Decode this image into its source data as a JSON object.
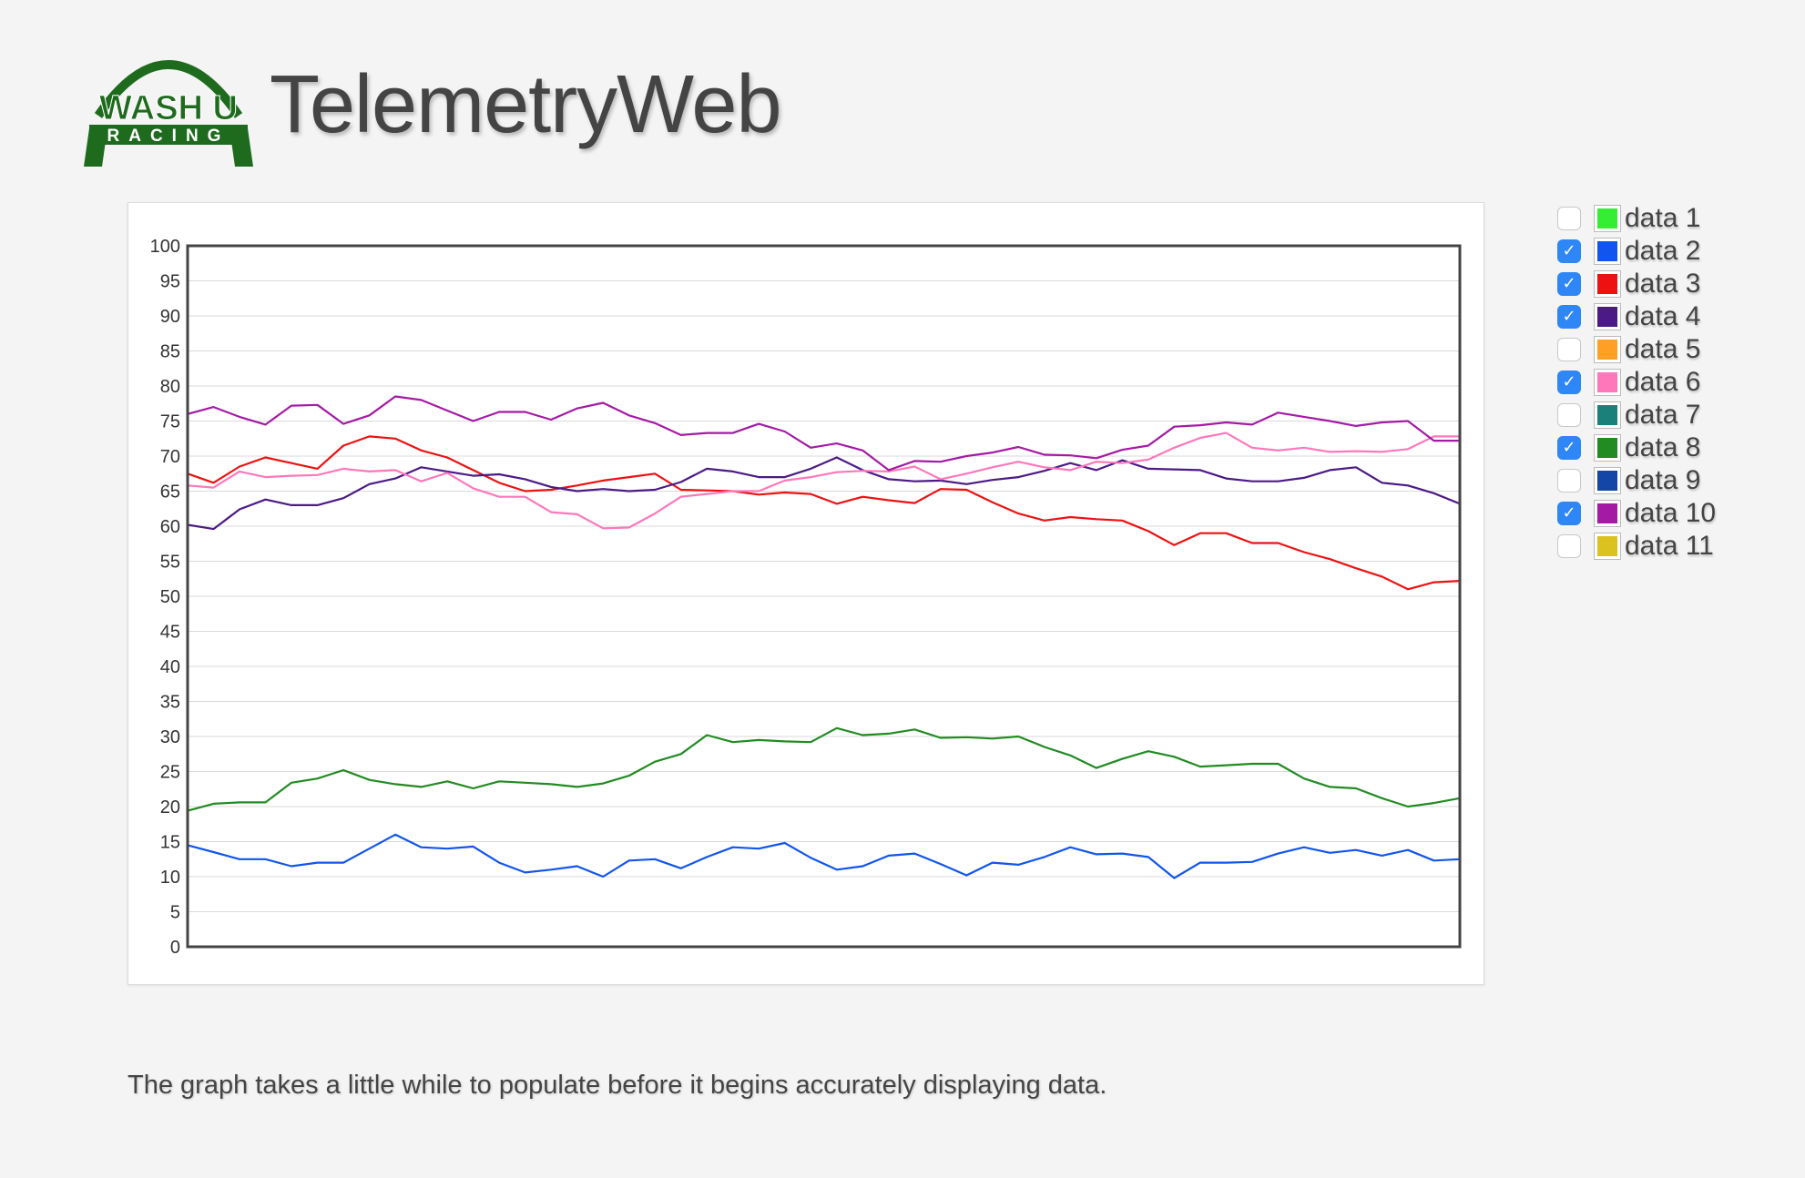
{
  "header": {
    "logo_top": "WASH U",
    "logo_bottom": "RACING",
    "title": "TelemetryWeb"
  },
  "legend": [
    {
      "label": "data 1",
      "color": "#33ee33",
      "checked": false
    },
    {
      "label": "data 2",
      "color": "#1155ee",
      "checked": true
    },
    {
      "label": "data 3",
      "color": "#ee1111",
      "checked": true
    },
    {
      "label": "data 4",
      "color": "#4b1a86",
      "checked": true
    },
    {
      "label": "data 5",
      "color": "#ffa024",
      "checked": false
    },
    {
      "label": "data 6",
      "color": "#ff77bb",
      "checked": true
    },
    {
      "label": "data 7",
      "color": "#1a8079",
      "checked": false
    },
    {
      "label": "data 8",
      "color": "#228b22",
      "checked": true
    },
    {
      "label": "data 9",
      "color": "#1446a8",
      "checked": false
    },
    {
      "label": "data 10",
      "color": "#a51aa5",
      "checked": true
    },
    {
      "label": "data 11",
      "color": "#dcc21f",
      "checked": false
    }
  ],
  "footnote": "The graph takes a little while to populate before it begins accurately displaying data.",
  "chart_data": {
    "type": "line",
    "title": "",
    "xlabel": "",
    "ylabel": "",
    "ylim": [
      0,
      100
    ],
    "y_ticks": [
      "0",
      "5",
      "10",
      "15",
      "20",
      "25",
      "30",
      "35",
      "40",
      "45",
      "50",
      "55",
      "60",
      "65",
      "70",
      "75",
      "80",
      "85",
      "90",
      "95",
      "100"
    ],
    "grid": true,
    "x_labels_shown": false,
    "x_count": 50,
    "series": [
      {
        "name": "data 2",
        "color": "#1155ee",
        "values": [
          14.5,
          13.5,
          12.5,
          12.5,
          11.5,
          12,
          12,
          14,
          16,
          14.2,
          14,
          14.3,
          12,
          10.6,
          11,
          11.5,
          10,
          12.3,
          12.5,
          11.2,
          12.8,
          14.2,
          14,
          14.8,
          12.7,
          11,
          11.5,
          13,
          13.3,
          11.8,
          10.2,
          12,
          11.7,
          12.8,
          14.2,
          13.2,
          13.3,
          12.8,
          9.8,
          12,
          12,
          12.1,
          13.3,
          14.2,
          13.4,
          13.8,
          13,
          13.8,
          12.3,
          12.5
        ]
      },
      {
        "name": "data 3",
        "color": "#ee1111",
        "values": [
          67.5,
          66.2,
          68.5,
          69.8,
          69,
          68.2,
          71.5,
          72.8,
          72.5,
          70.8,
          69.8,
          68,
          66.2,
          65,
          65.2,
          65.8,
          66.5,
          67,
          67.5,
          65.2,
          65.1,
          65,
          64.5,
          64.8,
          64.6,
          63.2,
          64.2,
          63.7,
          63.3,
          65.3,
          65.2,
          63.4,
          61.8,
          60.8,
          61.3,
          61,
          60.8,
          59.3,
          57.3,
          59,
          59,
          57.6,
          57.6,
          56.3,
          55.3,
          54,
          52.8,
          51,
          52,
          52.2
        ]
      },
      {
        "name": "data 4",
        "color": "#4b1a86",
        "values": [
          60.2,
          59.6,
          62.4,
          63.8,
          63,
          63,
          64,
          66,
          66.8,
          68.4,
          67.8,
          67.2,
          67.4,
          66.7,
          65.6,
          65,
          65.3,
          65,
          65.2,
          66.3,
          68.2,
          67.8,
          67,
          67,
          68.2,
          69.8,
          68,
          66.7,
          66.4,
          66.5,
          66,
          66.6,
          67,
          67.9,
          69,
          68,
          69.4,
          68.2,
          68.1,
          68,
          66.8,
          66.4,
          66.4,
          66.9,
          68,
          68.4,
          66.2,
          65.8,
          64.7,
          63.2
        ]
      },
      {
        "name": "data 6",
        "color": "#ff77bb",
        "values": [
          65.8,
          65.5,
          67.8,
          67,
          67.2,
          67.3,
          68.2,
          67.8,
          68,
          66.4,
          67.6,
          65.4,
          64.2,
          64.2,
          62,
          61.7,
          59.7,
          59.8,
          61.8,
          64.2,
          64.6,
          65,
          65,
          66.5,
          67,
          67.7,
          67.9,
          67.8,
          68.5,
          66.7,
          67.5,
          68.4,
          69.2,
          68.4,
          68,
          69.2,
          69,
          69.5,
          71.2,
          72.6,
          73.3,
          71.2,
          70.8,
          71.2,
          70.6,
          70.7,
          70.6,
          71,
          72.8,
          72.8
        ]
      },
      {
        "name": "data 8",
        "color": "#228b22",
        "values": [
          19.4,
          20.4,
          20.6,
          20.6,
          23.4,
          24,
          25.2,
          23.8,
          23.2,
          22.8,
          23.6,
          22.6,
          23.6,
          23.4,
          23.2,
          22.8,
          23.3,
          24.4,
          26.4,
          27.5,
          30.2,
          29.2,
          29.5,
          29.3,
          29.2,
          31.2,
          30.2,
          30.4,
          31,
          29.8,
          29.9,
          29.7,
          30,
          28.5,
          27.3,
          25.5,
          26.8,
          27.9,
          27.1,
          25.7,
          25.9,
          26.1,
          26.1,
          24,
          22.8,
          22.6,
          21.2,
          20,
          20.5,
          21.2
        ]
      },
      {
        "name": "data 10",
        "color": "#a51aa5",
        "values": [
          76,
          77,
          75.6,
          74.5,
          77.2,
          77.3,
          74.6,
          75.8,
          78.5,
          78,
          76.5,
          75,
          76.3,
          76.3,
          75.2,
          76.8,
          77.6,
          75.8,
          74.7,
          73,
          73.3,
          73.3,
          74.6,
          73.5,
          71.2,
          71.8,
          70.8,
          68,
          69.3,
          69.2,
          70,
          70.5,
          71.3,
          70.2,
          70.1,
          69.7,
          70.9,
          71.5,
          74.2,
          74.4,
          74.8,
          74.5,
          76.2,
          75.6,
          75,
          74.3,
          74.8,
          75,
          72.2,
          72.2
        ]
      }
    ]
  }
}
